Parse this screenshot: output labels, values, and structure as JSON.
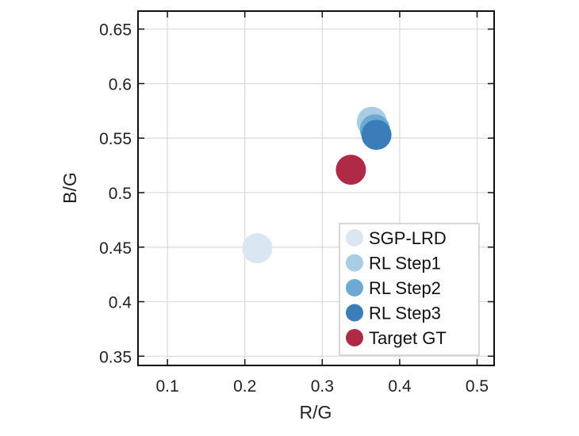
{
  "chart_data": {
    "type": "scatter",
    "title": "",
    "xlabel": "R/G",
    "ylabel": "B/G",
    "xlim": [
      0.062,
      0.522
    ],
    "ylim": [
      0.3415,
      0.6665
    ],
    "xticks": [
      0.1,
      0.2,
      0.3,
      0.4,
      0.5
    ],
    "xtick_labels": [
      "0.1",
      "0.2",
      "0.3",
      "0.4",
      "0.5"
    ],
    "yticks": [
      0.35,
      0.4,
      0.45,
      0.5,
      0.55,
      0.6,
      0.65
    ],
    "ytick_labels": [
      "0.35",
      "0.4",
      "0.45",
      "0.5",
      "0.55",
      "0.6",
      "0.65"
    ],
    "grid": true,
    "legend_position": "bottom-right",
    "series": [
      {
        "name": "SGP-LRD",
        "color": "#dae6f1",
        "points": [
          {
            "x": 0.216,
            "y": 0.449
          }
        ]
      },
      {
        "name": "RL Step1",
        "color": "#a9cde5",
        "points": [
          {
            "x": 0.364,
            "y": 0.565
          }
        ]
      },
      {
        "name": "RL Step2",
        "color": "#6ea9d3",
        "points": [
          {
            "x": 0.368,
            "y": 0.558
          }
        ]
      },
      {
        "name": "RL Step3",
        "color": "#3a7db9",
        "points": [
          {
            "x": 0.37,
            "y": 0.553
          }
        ]
      },
      {
        "name": "Target GT",
        "color": "#ae2a45",
        "points": [
          {
            "x": 0.337,
            "y": 0.521
          }
        ]
      }
    ]
  }
}
